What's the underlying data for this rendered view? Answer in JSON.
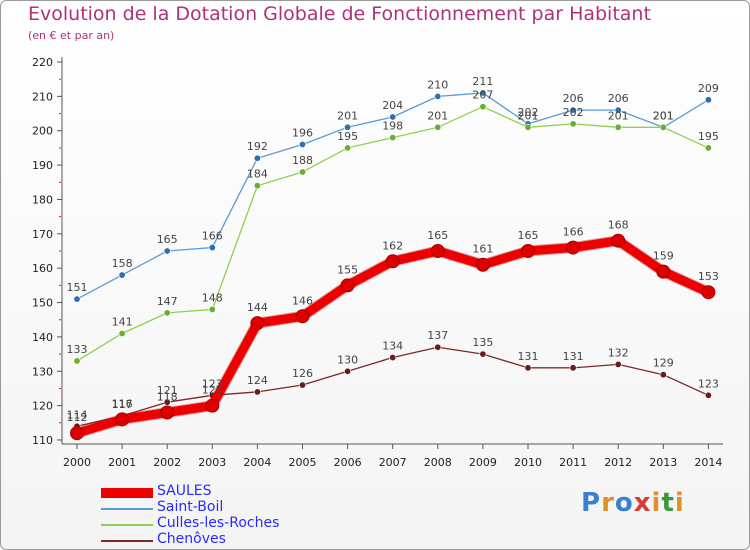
{
  "title": "Evolution de la Dotation Globale de Fonctionnement par Habitant",
  "subtitle": "(en € et par an)",
  "logo": {
    "text": "Proxiti",
    "letters": [
      "P",
      "r",
      "o",
      "x",
      "i",
      "t",
      "i"
    ],
    "colors": [
      "#3a7fd0",
      "#e0902a",
      "#3a7fd0",
      "#d43a3a",
      "#e0902a",
      "#3a9a3a",
      "#e0902a"
    ]
  },
  "chart_data": {
    "type": "line",
    "title": "Evolution de la Dotation Globale de Fonctionnement par Habitant",
    "subtitle": "(en € et par an)",
    "xlabel": "",
    "ylabel": "",
    "ylim": [
      110,
      220
    ],
    "yticks": [
      110,
      120,
      130,
      140,
      150,
      160,
      170,
      180,
      190,
      200,
      210,
      220
    ],
    "ytick_labels": [
      "110",
      "120",
      "130",
      "140",
      "150",
      "160",
      "170",
      "180",
      "190",
      "200",
      "210",
      "220"
    ],
    "categories": [
      "2000",
      "2001",
      "2002",
      "2003",
      "2004",
      "2005",
      "2006",
      "2007",
      "2008",
      "2009",
      "2010",
      "2011",
      "2012",
      "2013",
      "2014"
    ],
    "series": [
      {
        "name": "Saint-Boil",
        "color": "#5b9bd5",
        "marker_color": "#2f6fb0",
        "values": [
          151,
          158,
          165,
          166,
          192,
          196,
          201,
          204,
          210,
          211,
          202,
          206,
          206,
          201,
          209
        ],
        "labels": [
          "151",
          "158",
          "165",
          "166",
          "192",
          "196",
          "201",
          "204",
          "210",
          "211",
          "202",
          "206",
          "206",
          "201",
          "209"
        ]
      },
      {
        "name": "Culles-les-Roches",
        "color": "#90d050",
        "marker_color": "#66b030",
        "values": [
          133,
          141,
          147,
          148,
          184,
          188,
          195,
          198,
          201,
          207,
          201,
          202,
          201,
          201,
          195
        ],
        "labels": [
          "133",
          "141",
          "147",
          "148",
          "184",
          "188",
          "195",
          "198",
          "201",
          "207",
          "201",
          "202",
          "201",
          "201",
          "195"
        ]
      },
      {
        "name": "Chenôves",
        "color": "#7a2a2a",
        "marker_color": "#6a1a1a",
        "values": [
          114,
          117,
          121,
          123,
          124,
          126,
          130,
          134,
          137,
          135,
          131,
          131,
          132,
          129,
          123
        ],
        "labels": [
          "114",
          "117",
          "121",
          "123",
          "124",
          "126",
          "130",
          "134",
          "137",
          "135",
          "131",
          "131",
          "132",
          "129",
          "123"
        ]
      },
      {
        "name": "SAULES",
        "color": "#ee0000",
        "marker_color": "#dd0000",
        "values": [
          112,
          116,
          118,
          120,
          144,
          146,
          155,
          162,
          165,
          161,
          165,
          166,
          168,
          159,
          153
        ],
        "labels": [
          "112",
          "116",
          "118",
          "120",
          "144",
          "146",
          "155",
          "162",
          "165",
          "161",
          "165",
          "166",
          "168",
          "159",
          "153"
        ]
      }
    ],
    "legend": [
      "SAULES",
      "Saint-Boil",
      "Culles-les-Roches",
      "Chenôves"
    ],
    "legend_position": "bottom-left",
    "grid": false
  }
}
